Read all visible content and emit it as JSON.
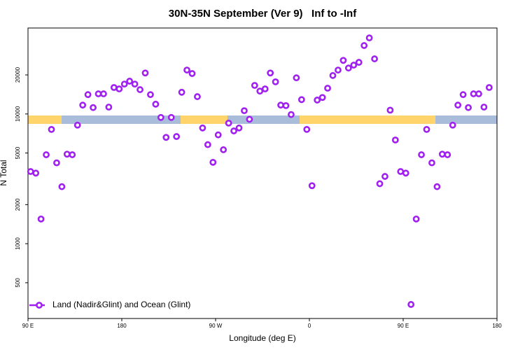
{
  "chart_data": {
    "type": "scatter",
    "title": "30N-35N September (Ver 9)   Inf to -Inf",
    "x_label": "Longitude (deg E)",
    "y_label": "N Total",
    "log_y": true,
    "legend": "bottom-left",
    "xlim": [
      90,
      540
    ],
    "ylim": [
      265,
      46000
    ],
    "xticks": [
      {
        "value": 90,
        "label": "90 E"
      },
      180,
      {
        "value": 270,
        "label": "90 W"
      },
      {
        "value": 360,
        "label": "0"
      },
      {
        "value": 450,
        "label": "90 E"
      },
      {
        "value": 540,
        "label": "180"
      }
    ],
    "yticks": [
      500,
      1000,
      2000,
      5000,
      10000,
      20000
    ],
    "x": [
      92.5,
      97.5,
      102.5,
      107.5,
      112.5,
      117.5,
      122.5,
      127.5,
      132.5,
      137.5,
      142.5,
      147.5,
      152.5,
      157.5,
      162.5,
      167.5,
      172.5,
      177.5,
      182.5,
      187.5,
      192.5,
      197.5,
      202.5,
      207.5,
      212.5,
      217.5,
      222.5,
      227.5,
      232.5,
      237.5,
      242.5,
      247.5,
      252.5,
      257.5,
      262.5,
      267.5,
      272.5,
      277.5,
      282.5,
      287.5,
      292.5,
      297.5,
      302.5,
      307.5,
      312.5,
      317.5,
      322.5,
      327.5,
      332.5,
      337.5,
      342.5,
      347.5,
      352.5,
      357.5,
      362.5,
      367.5,
      372.5,
      377.5,
      382.5,
      387.5,
      392.5,
      397.5,
      402.5,
      407.5,
      412.5,
      417.5,
      422.5,
      427.5,
      432.5,
      437.5,
      442.5,
      447.5,
      452.5,
      457.5,
      462.5,
      467.5,
      472.5,
      477.5,
      482.5,
      487.5,
      492.5,
      497.5,
      502.5,
      507.5,
      512.5,
      517.5,
      522.5,
      527.5,
      532.5
    ],
    "series": [
      {
        "name": "Land (Nadir&Glint) and Ocean (Glint)",
        "color": "#a020f0",
        "values": [
          3600,
          3500,
          1550,
          4850,
          7600,
          4200,
          2750,
          4900,
          4850,
          8200,
          11700,
          14100,
          11200,
          14300,
          14300,
          11300,
          16000,
          15600,
          17000,
          17900,
          17000,
          15400,
          20700,
          14100,
          11900,
          9400,
          6600,
          9400,
          6700,
          14700,
          21800,
          20500,
          13600,
          7800,
          5800,
          4240,
          6900,
          5300,
          8500,
          7400,
          7800,
          10600,
          9100,
          16600,
          15000,
          15600,
          20700,
          17700,
          11700,
          11600,
          9900,
          19000,
          12900,
          7600,
          2800,
          12800,
          13400,
          15800,
          19800,
          21800,
          25900,
          22600,
          23800,
          25000,
          33700,
          38600,
          26600,
          2900,
          3300,
          10700,
          6300,
          3600,
          3500,
          340,
          1550,
          4850,
          7600,
          4200,
          2750,
          4900,
          4850,
          8200,
          11700,
          14100,
          11200,
          14300,
          14300,
          11300,
          16000
        ]
      }
    ]
  }
}
